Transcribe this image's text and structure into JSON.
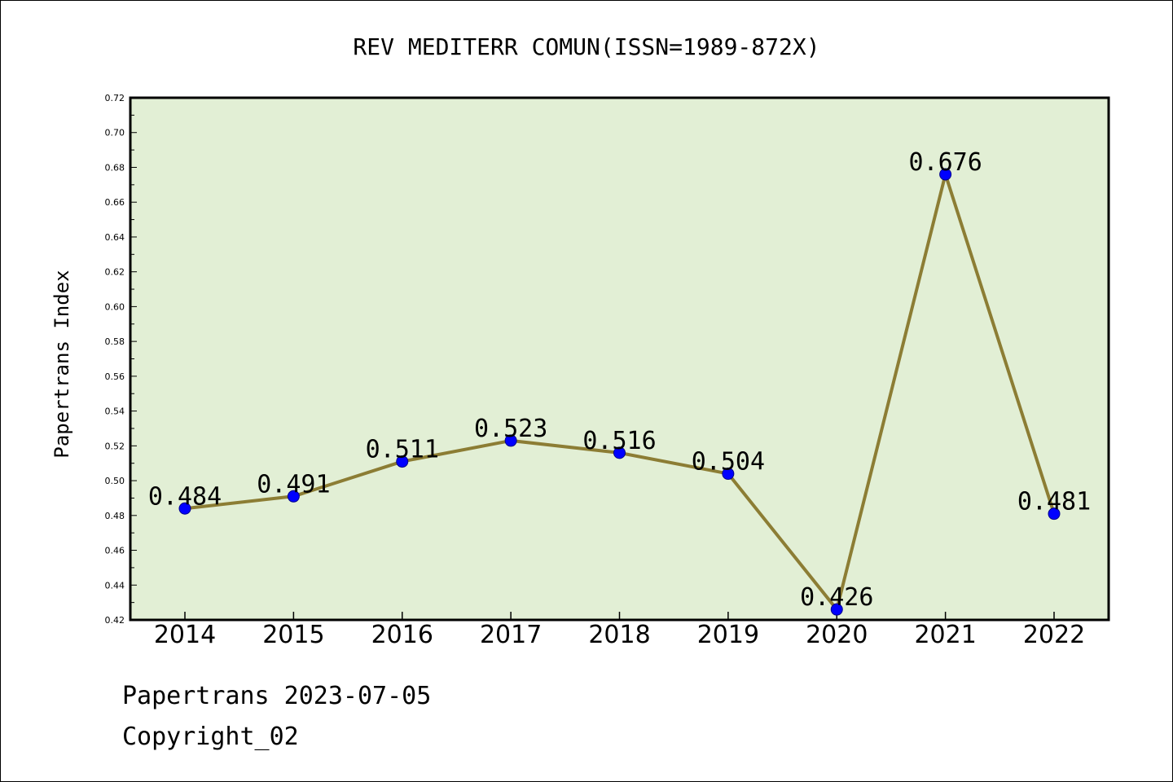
{
  "chart_data": {
    "type": "line",
    "title": "REV MEDITERR COMUN(ISSN=1989-872X)",
    "ylabel": "Papertrans Index",
    "xlabel": "",
    "categories": [
      "2014",
      "2015",
      "2016",
      "2017",
      "2018",
      "2019",
      "2020",
      "2021",
      "2022"
    ],
    "series": [
      {
        "values": [
          0.484,
          0.491,
          0.511,
          0.523,
          0.516,
          0.504,
          0.426,
          0.676,
          0.481
        ],
        "labels": [
          "0.484",
          "0.491",
          "0.511",
          "0.523",
          "0.516",
          "0.504",
          "0.426",
          "0.676",
          "0.481"
        ]
      }
    ],
    "ylim": [
      0.42,
      0.72
    ],
    "yticks": [
      "0.42",
      "0.44",
      "0.46",
      "0.48",
      "0.50",
      "0.52",
      "0.54",
      "0.56",
      "0.58",
      "0.60",
      "0.62",
      "0.64",
      "0.66",
      "0.68",
      "0.70",
      "0.72"
    ],
    "grid": false,
    "legend": "none",
    "colors": {
      "plot_background": "#e2efd5",
      "line": "#8c7d34",
      "marker": "#0000ff",
      "axis": "#000000"
    }
  },
  "footer": {
    "line1": "Papertrans 2023-07-05",
    "line2": "Copyright_02"
  }
}
